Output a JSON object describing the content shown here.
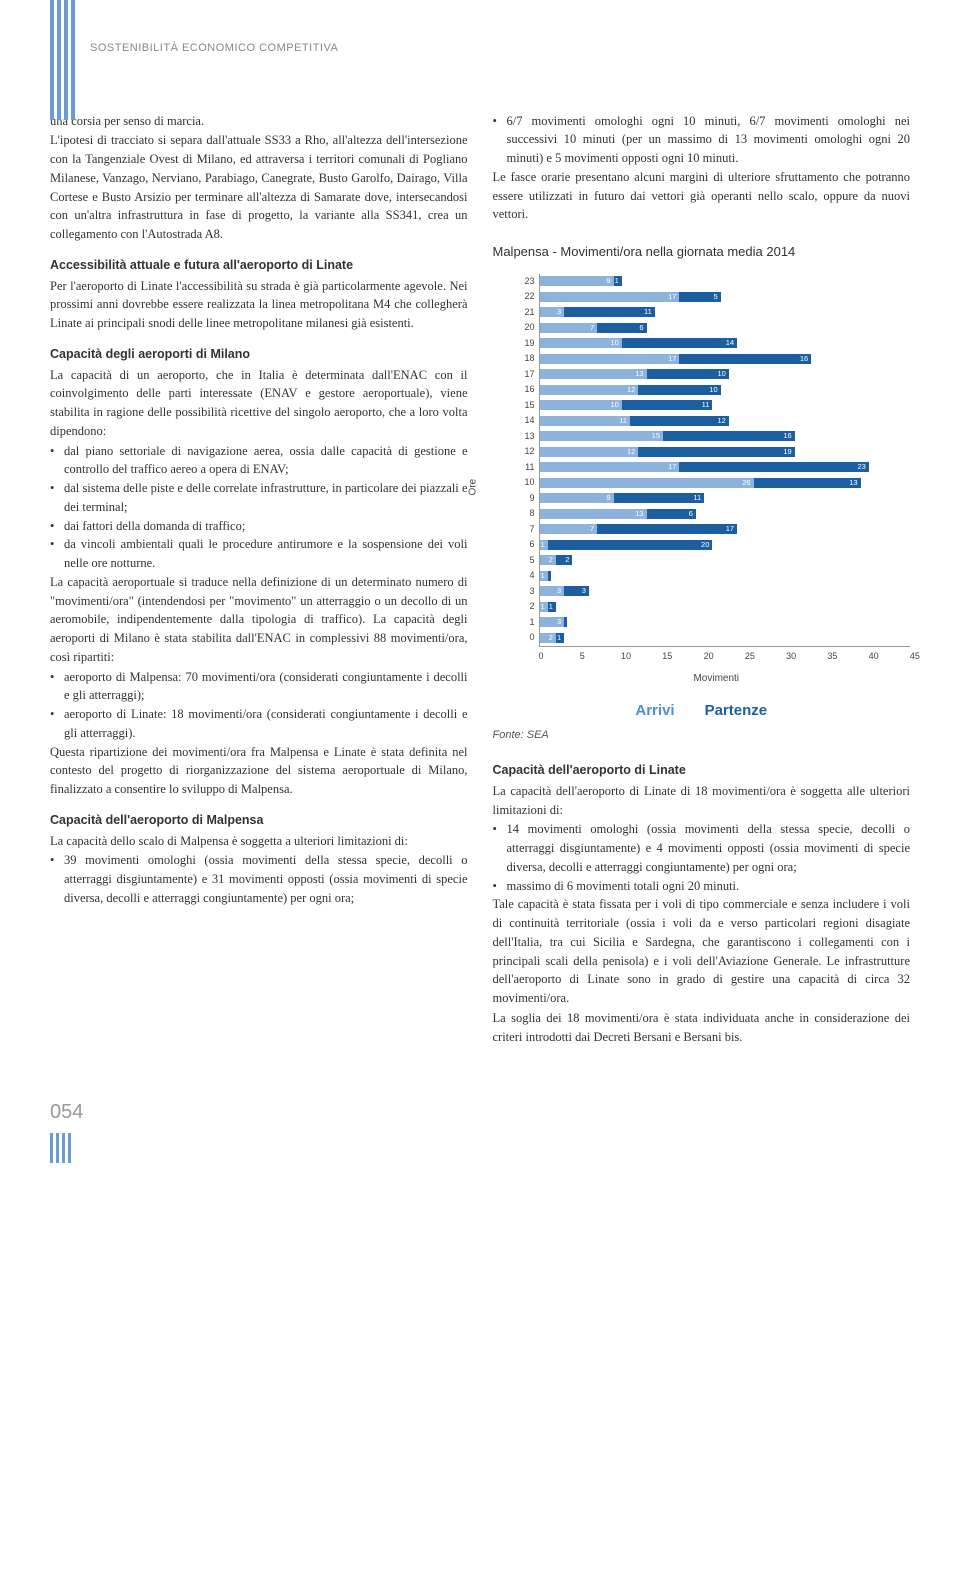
{
  "header": {
    "section_title": "SOSTENIBILITÀ ECONOMICO COMPETITIVA"
  },
  "left_col": {
    "p1": "una corsia per senso di marcia.",
    "p2": "L'ipotesi di tracciato si separa dall'attuale SS33 a Rho, all'altezza dell'intersezione con la Tangenziale Ovest di Milano, ed attraversa i territori comunali di Pogliano Milanese, Vanzago, Nerviano, Parabiago, Canegrate, Busto Garolfo, Dairago, Villa Cortese e Busto Arsizio per terminare all'altezza di Samarate dove, intersecandosi con un'altra infrastruttura in fase di progetto, la variante alla SS341, crea un collegamento con l'Autostrada A8.",
    "h1": "Accessibilità attuale e futura all'aeroporto di Linate",
    "p3": "Per l'aeroporto di Linate l'accessibilità su strada è già particolarmente agevole. Nei prossimi anni dovrebbe essere realizzata la linea metropolitana M4 che collegherà Linate ai principali snodi delle linee metropolitane milanesi già esistenti.",
    "h2": "Capacità degli aeroporti di Milano",
    "p4": "La capacità di un aeroporto, che in Italia è determinata dall'ENAC con il coinvolgimento delle parti interessate (ENAV e gestore aeroportuale), viene stabilita in ragione delle possibilità ricettive del singolo aeroporto, che a loro volta dipendono:",
    "bl1": [
      "dal piano settoriale di navigazione aerea, ossia dalle capacità di gestione e controllo del traffico aereo a opera di ENAV;",
      "dal sistema delle piste e delle correlate infrastrutture, in particolare dei piazzali e dei terminal;",
      "dai fattori della domanda di traffico;",
      "da vincoli ambientali quali le procedure antirumore e la sospensione dei voli nelle ore notturne."
    ],
    "p5": "La capacità aeroportuale si traduce nella definizione di un determinato numero di \"movimenti/ora\" (intendendosi per \"movimento\" un atterraggio o un decollo di un aeromobile, indipendentemente dalla tipologia di traffico). La capacità degli aeroporti di Milano è stata stabilita dall'ENAC in complessivi 88 movimenti/ora, così ripartiti:",
    "bl2": [
      "aeroporto di Malpensa: 70 movimenti/ora (considerati congiuntamente i decolli e gli atterraggi);",
      "aeroporto di Linate: 18 movimenti/ora (considerati congiuntamente i decolli e gli atterraggi)."
    ],
    "p6": "Questa ripartizione dei movimenti/ora fra Malpensa e Linate è stata definita nel contesto del progetto di riorganizzazione del sistema aeroportuale di Milano, finalizzato a consentire lo sviluppo di Malpensa.",
    "h3": "Capacità dell'aeroporto di Malpensa",
    "p7": "La capacità dello scalo di Malpensa è soggetta a ulteriori limitazioni di:",
    "bl3": [
      "39 movimenti omologhi (ossia movimenti della stessa specie, decolli o atterraggi disgiuntamente) e 31 movimenti opposti (ossia movimenti di specie diversa, decolli e atterraggi congiuntamente) per ogni ora;"
    ]
  },
  "right_col": {
    "bl1": [
      "6/7 movimenti omologhi ogni 10 minuti, 6/7 movimenti omologhi nei successivi 10 minuti (per un massimo di 13 movimenti omologhi ogni 20 minuti) e 5 movimenti opposti ogni 10 minuti."
    ],
    "p1": "Le fasce orarie presentano alcuni margini di ulteriore sfruttamento che potranno essere utilizzati in futuro dai vettori già operanti nello scalo, oppure da nuovi vettori.",
    "chart_title": "Malpensa - Movimenti/ora nella giornata media 2014",
    "fonte": "Fonte: SEA",
    "h1": "Capacità dell'aeroporto di Linate",
    "p2": "La capacità dell'aeroporto di Linate di 18 movimenti/ora è soggetta alle ulteriori limitazioni di:",
    "bl2": [
      "14 movimenti omologhi (ossia movimenti della stessa specie, decolli o atterraggi disgiuntamente) e 4 movimenti opposti (ossia movimenti di specie diversa, decolli e atterraggi congiuntamente) per ogni ora;",
      "massimo di 6 movimenti totali ogni 20 minuti."
    ],
    "p3": "Tale capacità è stata fissata per i voli di tipo commerciale e senza includere i voli di continuità territoriale (ossia i voli da e verso particolari regioni disagiate dell'Italia, tra cui Sicilia e Sardegna, che garantiscono i collegamenti con i principali scali della penisola) e i voli dell'Aviazione Generale. Le infrastrutture dell'aeroporto di Linate sono in grado di gestire una capacità di circa 32 movimenti/ora.",
    "p4": "La soglia dei 18 movimenti/ora è stata individuata anche in considerazione dei criteri introdotti dai Decreti Bersani e Bersani bis.",
    "legend_arrivi": "Arrivi",
    "legend_partenze": "Partenze"
  },
  "chart": {
    "type": "bar-horizontal-stacked",
    "ylabel": "Ore",
    "xlabel": "Movimenti",
    "hours": [
      23,
      22,
      21,
      20,
      19,
      18,
      17,
      16,
      15,
      14,
      13,
      12,
      11,
      10,
      9,
      8,
      7,
      6,
      5,
      4,
      3,
      2,
      1,
      0
    ],
    "arrivals": [
      9,
      17,
      3,
      7,
      10,
      17,
      13,
      12,
      10,
      11,
      15,
      12,
      17,
      26,
      9,
      13,
      7,
      1,
      2,
      1,
      3,
      1,
      3,
      2
    ],
    "departures": [
      1,
      5,
      11,
      6,
      14,
      16,
      10,
      10,
      11,
      12,
      16,
      19,
      23,
      13,
      11,
      6,
      17,
      20,
      2,
      0,
      3,
      1,
      0,
      1
    ],
    "xmax": 45,
    "xtick_step": 5,
    "xticks": [
      0,
      5,
      10,
      15,
      20,
      25,
      30,
      35,
      40,
      45
    ],
    "arrivals_color": "#8db3dc",
    "departures_color": "#1c5fa0",
    "label_fontsize": 9,
    "tick_fontsize": 9,
    "background_color": "#ffffff"
  },
  "page_number": "054"
}
